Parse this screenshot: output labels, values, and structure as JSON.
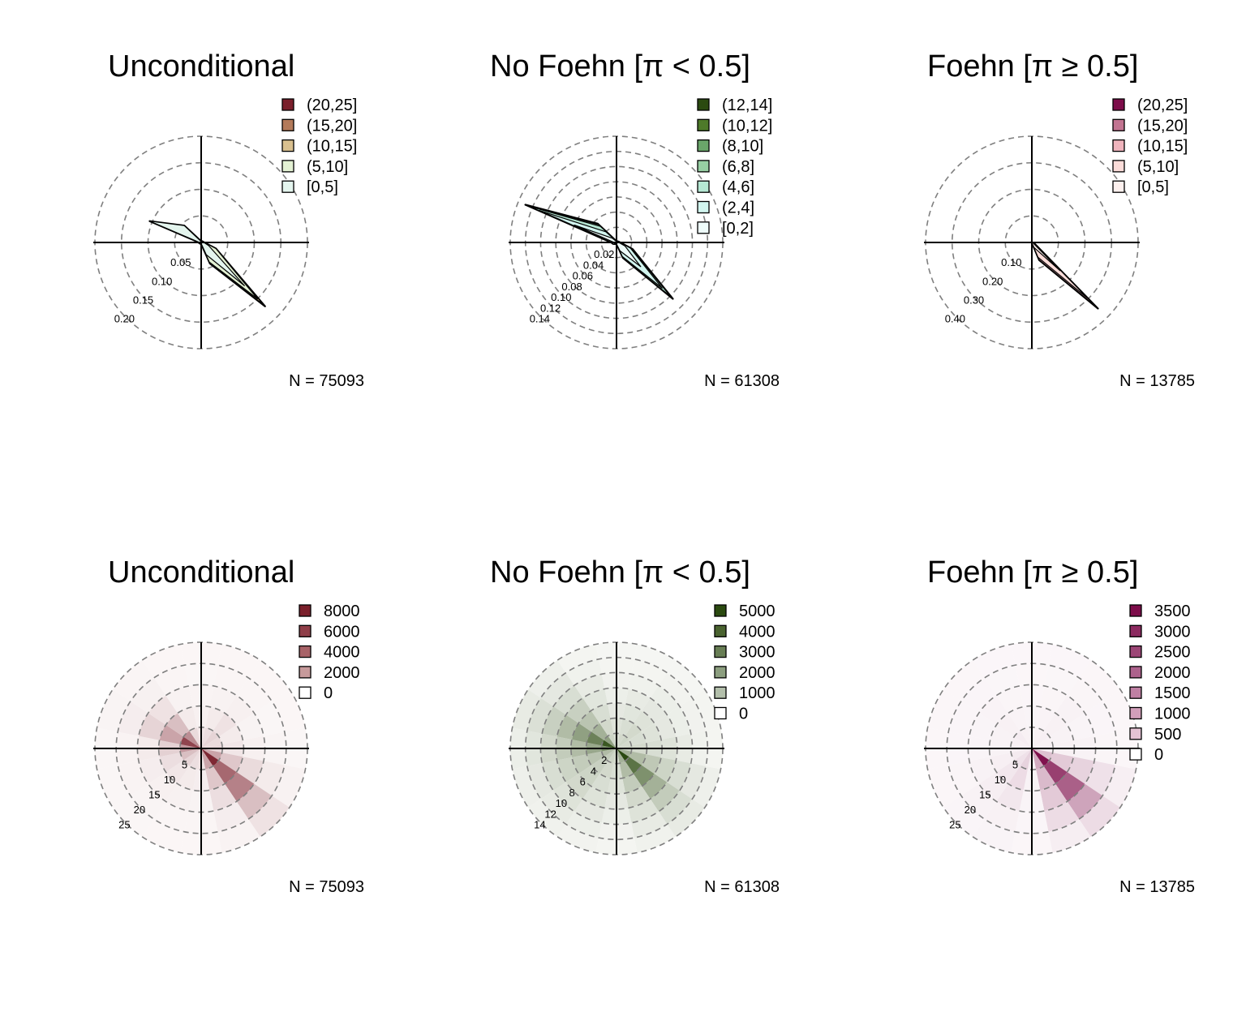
{
  "figure": {
    "background": "#ffffff",
    "grid_color": "#7f7f7f",
    "axis_color": "#000000"
  },
  "chart_data": [
    {
      "type": "radar",
      "row": "top",
      "title": "Unconditional",
      "subtitle_symbol": "",
      "rings": [
        0.05,
        0.1,
        0.15,
        0.2
      ],
      "ring_labels": [
        "0.05",
        "0.10",
        "0.15",
        "0.20"
      ],
      "rmax": 0.2,
      "legend": [
        {
          "label": "(20,25]",
          "color": "#7a1f2b"
        },
        {
          "label": "(15,20]",
          "color": "#b37a5a"
        },
        {
          "label": "(10,15]",
          "color": "#d9c08f"
        },
        {
          "label": "(5,10]",
          "color": "#e3f1d3"
        },
        {
          "label": "[0,5]",
          "color": "#e4f5ee"
        }
      ],
      "directions_deg": [
        0,
        22.5,
        45,
        67.5,
        90,
        112.5,
        135,
        157.5,
        180,
        202.5,
        225,
        247.5,
        270,
        292.5,
        315,
        337.5
      ],
      "series": [
        {
          "name": "[0,5]",
          "color": "#e4f5ee",
          "values": [
            0.002,
            0.002,
            0.002,
            0.003,
            0.005,
            0.015,
            0.115,
            0.025,
            0.002,
            0.002,
            0.002,
            0.003,
            0.003,
            0.105,
            0.045,
            0.003
          ]
        },
        {
          "name": "(5,10]",
          "color": "#e3f1d3",
          "values": [
            0.003,
            0.003,
            0.003,
            0.004,
            0.006,
            0.03,
            0.15,
            0.04,
            0.003,
            0.003,
            0.003,
            0.004,
            0.004,
            0.105,
            0.045,
            0.004
          ]
        },
        {
          "name": "(10,15]",
          "color": "#d9c08f",
          "values": [
            0.003,
            0.003,
            0.003,
            0.004,
            0.006,
            0.03,
            0.165,
            0.042,
            0.003,
            0.003,
            0.003,
            0.004,
            0.004,
            0.105,
            0.045,
            0.004
          ]
        },
        {
          "name": "(15,20]",
          "color": "#b37a5a",
          "values": [
            0.003,
            0.003,
            0.003,
            0.004,
            0.006,
            0.03,
            0.168,
            0.043,
            0.003,
            0.003,
            0.003,
            0.004,
            0.004,
            0.105,
            0.045,
            0.004
          ]
        },
        {
          "name": "(20,25]",
          "color": "#7a1f2b",
          "values": [
            0.003,
            0.003,
            0.003,
            0.004,
            0.006,
            0.03,
            0.17,
            0.043,
            0.003,
            0.003,
            0.003,
            0.004,
            0.004,
            0.105,
            0.045,
            0.004
          ]
        }
      ],
      "n_label": "N = 75093"
    },
    {
      "type": "radar",
      "row": "top",
      "title": "No Foehn [π < 0.5]",
      "rings": [
        0.02,
        0.04,
        0.06,
        0.08,
        0.1,
        0.12,
        0.14
      ],
      "ring_labels": [
        "0.02",
        "0.04",
        "0.06",
        "0.08",
        "0.10",
        "0.12",
        "0.14"
      ],
      "rmax": 0.14,
      "legend": [
        {
          "label": "(12,14]",
          "color": "#2b4a10"
        },
        {
          "label": "(10,12]",
          "color": "#4e7a2a"
        },
        {
          "label": "(8,10]",
          "color": "#6aa56a"
        },
        {
          "label": "(6,8]",
          "color": "#97cfa3"
        },
        {
          "label": "(4,6]",
          "color": "#b6e8d4"
        },
        {
          "label": "(2,4]",
          "color": "#d2f5ef"
        },
        {
          "label": "[0,2]",
          "color": "#eefcfa"
        }
      ],
      "directions_deg": [
        0,
        22.5,
        45,
        67.5,
        90,
        112.5,
        135,
        157.5,
        180,
        202.5,
        225,
        247.5,
        270,
        292.5,
        315,
        337.5
      ],
      "series": [
        {
          "name": "[0,2]",
          "color": "#eefcfa",
          "values": [
            0.002,
            0.002,
            0.002,
            0.002,
            0.003,
            0.012,
            0.045,
            0.012,
            0.002,
            0.002,
            0.002,
            0.003,
            0.003,
            0.06,
            0.008,
            0.002
          ]
        },
        {
          "name": "(2,4]",
          "color": "#d2f5ef",
          "values": [
            0.002,
            0.002,
            0.002,
            0.003,
            0.005,
            0.02,
            0.085,
            0.02,
            0.002,
            0.002,
            0.003,
            0.005,
            0.006,
            0.11,
            0.02,
            0.003
          ]
        },
        {
          "name": "(4,6]",
          "color": "#b6e8d4",
          "values": [
            0.002,
            0.002,
            0.002,
            0.003,
            0.005,
            0.022,
            0.1,
            0.022,
            0.002,
            0.002,
            0.003,
            0.005,
            0.007,
            0.125,
            0.03,
            0.003
          ]
        },
        {
          "name": "(6,8]",
          "color": "#97cfa3",
          "values": [
            0.002,
            0.002,
            0.002,
            0.003,
            0.005,
            0.023,
            0.103,
            0.022,
            0.002,
            0.002,
            0.003,
            0.005,
            0.007,
            0.128,
            0.033,
            0.003
          ]
        },
        {
          "name": "(8,10]",
          "color": "#6aa56a",
          "values": [
            0.002,
            0.002,
            0.002,
            0.003,
            0.005,
            0.023,
            0.104,
            0.022,
            0.002,
            0.002,
            0.003,
            0.005,
            0.007,
            0.129,
            0.034,
            0.003
          ]
        },
        {
          "name": "(10,12]",
          "color": "#4e7a2a",
          "values": [
            0.002,
            0.002,
            0.002,
            0.003,
            0.005,
            0.023,
            0.105,
            0.022,
            0.002,
            0.002,
            0.003,
            0.005,
            0.007,
            0.13,
            0.035,
            0.003
          ]
        },
        {
          "name": "(12,14]",
          "color": "#2b4a10",
          "values": [
            0.002,
            0.002,
            0.002,
            0.003,
            0.005,
            0.023,
            0.105,
            0.022,
            0.002,
            0.002,
            0.003,
            0.005,
            0.007,
            0.13,
            0.035,
            0.003
          ]
        }
      ],
      "n_label": "N = 61308"
    },
    {
      "type": "radar",
      "row": "top",
      "title": "Foehn [π ≥ 0.5]",
      "rings": [
        0.1,
        0.2,
        0.3,
        0.4
      ],
      "ring_labels": [
        "0.10",
        "0.20",
        "0.30",
        "0.40"
      ],
      "rmax": 0.4,
      "legend": [
        {
          "label": "(20,25]",
          "color": "#7d0d4a"
        },
        {
          "label": "(15,20]",
          "color": "#c27491"
        },
        {
          "label": "(10,15]",
          "color": "#f0b4bd"
        },
        {
          "label": "(5,10]",
          "color": "#fbdcd9"
        },
        {
          "label": "[0,5]",
          "color": "#fdf0ee"
        }
      ],
      "directions_deg": [
        0,
        22.5,
        45,
        67.5,
        90,
        112.5,
        135,
        157.5,
        180,
        202.5,
        225,
        247.5,
        270,
        292.5,
        315,
        337.5
      ],
      "series": [
        {
          "name": "[0,5]",
          "color": "#fdf0ee",
          "values": [
            0.001,
            0.001,
            0.001,
            0.001,
            0.001,
            0.005,
            0.15,
            0.02,
            0.001,
            0.001,
            0.001,
            0.001,
            0.001,
            0.002,
            0.002,
            0.001
          ]
        },
        {
          "name": "(5,10]",
          "color": "#fbdcd9",
          "values": [
            0.001,
            0.001,
            0.001,
            0.001,
            0.002,
            0.01,
            0.3,
            0.06,
            0.001,
            0.001,
            0.001,
            0.001,
            0.001,
            0.002,
            0.002,
            0.001
          ]
        },
        {
          "name": "(10,15]",
          "color": "#f0b4bd",
          "values": [
            0.001,
            0.001,
            0.001,
            0.001,
            0.002,
            0.011,
            0.345,
            0.07,
            0.001,
            0.001,
            0.001,
            0.001,
            0.001,
            0.002,
            0.002,
            0.001
          ]
        },
        {
          "name": "(15,20]",
          "color": "#c27491",
          "values": [
            0.001,
            0.001,
            0.001,
            0.001,
            0.002,
            0.011,
            0.35,
            0.072,
            0.001,
            0.001,
            0.001,
            0.001,
            0.001,
            0.002,
            0.002,
            0.001
          ]
        },
        {
          "name": "(20,25]",
          "color": "#7d0d4a",
          "values": [
            0.001,
            0.001,
            0.001,
            0.001,
            0.002,
            0.011,
            0.352,
            0.072,
            0.001,
            0.001,
            0.001,
            0.001,
            0.001,
            0.002,
            0.002,
            0.001
          ]
        }
      ],
      "n_label": "N = 13785"
    },
    {
      "type": "heatmap",
      "row": "bottom",
      "title": "Unconditional",
      "rings": [
        5,
        10,
        15,
        20,
        25
      ],
      "ring_labels": [
        "5",
        "10",
        "15",
        "20",
        "25"
      ],
      "rmax": 25,
      "legend": [
        {
          "label": "8000",
          "color": "#7a1f2b"
        },
        {
          "label": "6000",
          "color": "#8f3e48"
        },
        {
          "label": "4000",
          "color": "#a86368"
        },
        {
          "label": "2000",
          "color": "#c79a9b"
        },
        {
          "label": "0",
          "color": "#ffffff"
        }
      ],
      "color_high": "#7a1f2b",
      "color_low": "#fbf7f7",
      "max_count": 9000,
      "directions_deg": [
        0,
        22.5,
        45,
        67.5,
        90,
        112.5,
        135,
        157.5,
        180,
        202.5,
        225,
        247.5,
        270,
        292.5,
        315,
        337.5
      ],
      "speed_edges": [
        0,
        5,
        10,
        15,
        20,
        25
      ],
      "counts": [
        [
          300,
          100,
          40,
          10,
          5
        ],
        [
          500,
          200,
          60,
          20,
          5
        ],
        [
          800,
          400,
          100,
          20,
          5
        ],
        [
          600,
          200,
          50,
          10,
          5
        ],
        [
          700,
          300,
          100,
          30,
          10
        ],
        [
          2500,
          1200,
          600,
          200,
          60
        ],
        [
          8500,
          5200,
          4000,
          1500,
          400
        ],
        [
          2500,
          1200,
          500,
          150,
          40
        ],
        [
          400,
          150,
          50,
          15,
          5
        ],
        [
          500,
          200,
          80,
          20,
          5
        ],
        [
          800,
          300,
          100,
          30,
          10
        ],
        [
          1500,
          500,
          150,
          40,
          10
        ],
        [
          3000,
          900,
          200,
          40,
          10
        ],
        [
          7000,
          2500,
          800,
          150,
          30
        ],
        [
          3500,
          1500,
          400,
          80,
          20
        ],
        [
          600,
          200,
          60,
          15,
          5
        ]
      ],
      "n_label": "N = 75093"
    },
    {
      "type": "heatmap",
      "row": "bottom",
      "title": "No Foehn [π < 0.5]",
      "rings": [
        2,
        4,
        6,
        8,
        10,
        12,
        14
      ],
      "ring_labels": [
        "2",
        "4",
        "6",
        "8",
        "10",
        "12",
        "14"
      ],
      "rmax": 14,
      "legend": [
        {
          "label": "5000",
          "color": "#2b4a10"
        },
        {
          "label": "4000",
          "color": "#4a6330"
        },
        {
          "label": "3000",
          "color": "#687e55"
        },
        {
          "label": "2000",
          "color": "#8c9e7f"
        },
        {
          "label": "1000",
          "color": "#b3bfab"
        },
        {
          "label": "0",
          "color": "#ffffff"
        }
      ],
      "color_high": "#2b4a10",
      "color_low": "#f7f8f5",
      "max_count": 5000,
      "directions_deg": [
        0,
        22.5,
        45,
        67.5,
        90,
        112.5,
        135,
        157.5,
        180,
        202.5,
        225,
        247.5,
        270,
        292.5,
        315,
        337.5
      ],
      "speed_edges": [
        0,
        2,
        4,
        6,
        8,
        10,
        12,
        14
      ],
      "counts": [
        [
          400,
          300,
          200,
          100,
          50,
          20,
          10
        ],
        [
          500,
          400,
          250,
          150,
          60,
          20,
          10
        ],
        [
          600,
          500,
          300,
          200,
          100,
          40,
          10
        ],
        [
          500,
          400,
          300,
          200,
          100,
          50,
          20
        ],
        [
          600,
          500,
          400,
          300,
          150,
          60,
          20
        ],
        [
          1500,
          1200,
          900,
          600,
          400,
          200,
          80
        ],
        [
          5000,
          3500,
          2500,
          1500,
          800,
          400,
          150
        ],
        [
          1500,
          1200,
          800,
          500,
          300,
          150,
          60
        ],
        [
          500,
          400,
          300,
          200,
          100,
          50,
          20
        ],
        [
          600,
          500,
          400,
          300,
          200,
          100,
          40
        ],
        [
          800,
          700,
          600,
          500,
          300,
          150,
          60
        ],
        [
          1200,
          1000,
          800,
          600,
          400,
          200,
          80
        ],
        [
          2500,
          1800,
          1200,
          800,
          500,
          250,
          100
        ],
        [
          4500,
          3000,
          2000,
          1200,
          700,
          350,
          150
        ],
        [
          2000,
          1500,
          1000,
          700,
          400,
          200,
          80
        ],
        [
          600,
          500,
          400,
          250,
          150,
          60,
          20
        ]
      ],
      "n_label": "N = 61308"
    },
    {
      "type": "heatmap",
      "row": "bottom",
      "title": "Foehn [π ≥ 0.5]",
      "rings": [
        5,
        10,
        15,
        20,
        25
      ],
      "ring_labels": [
        "5",
        "10",
        "15",
        "20",
        "25"
      ],
      "rmax": 25,
      "legend": [
        {
          "label": "3500",
          "color": "#7d0d4a"
        },
        {
          "label": "3000",
          "color": "#8c2a60"
        },
        {
          "label": "2500",
          "color": "#9c4676"
        },
        {
          "label": "2000",
          "color": "#ad628c"
        },
        {
          "label": "1500",
          "color": "#bf80a3"
        },
        {
          "label": "1000",
          "color": "#d29fba"
        },
        {
          "label": "500",
          "color": "#e5c2d3"
        },
        {
          "label": "0",
          "color": "#ffffff"
        }
      ],
      "color_high": "#7d0d4a",
      "color_low": "#fbf7f9",
      "max_count": 3600,
      "directions_deg": [
        0,
        22.5,
        45,
        67.5,
        90,
        112.5,
        135,
        157.5,
        180,
        202.5,
        225,
        247.5,
        270,
        292.5,
        315,
        337.5
      ],
      "speed_edges": [
        0,
        5,
        10,
        15,
        20,
        25
      ],
      "counts": [
        [
          20,
          10,
          5,
          2,
          1
        ],
        [
          30,
          15,
          8,
          3,
          1
        ],
        [
          40,
          30,
          20,
          8,
          2
        ],
        [
          30,
          20,
          10,
          5,
          2
        ],
        [
          40,
          30,
          20,
          8,
          2
        ],
        [
          500,
          400,
          300,
          150,
          40
        ],
        [
          3500,
          2600,
          2000,
          900,
          200
        ],
        [
          800,
          600,
          400,
          200,
          50
        ],
        [
          40,
          20,
          10,
          5,
          2
        ],
        [
          300,
          200,
          100,
          30,
          10
        ],
        [
          150,
          100,
          50,
          20,
          5
        ],
        [
          80,
          40,
          20,
          8,
          2
        ],
        [
          40,
          20,
          10,
          5,
          2
        ],
        [
          40,
          20,
          10,
          5,
          2
        ],
        [
          60,
          30,
          15,
          5,
          2
        ],
        [
          30,
          15,
          8,
          3,
          1
        ]
      ],
      "n_label": "N = 13785"
    }
  ]
}
